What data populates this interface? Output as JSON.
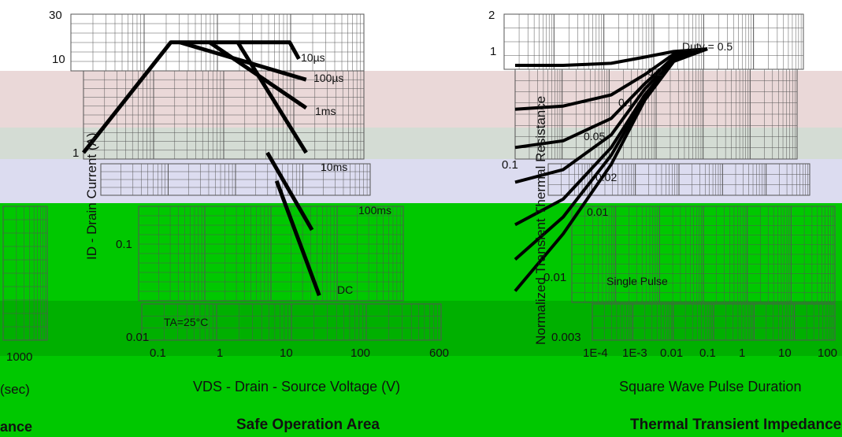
{
  "colors": {
    "pink_band": "#ead8d8",
    "grey_band": "#d4dcd4",
    "lavender_band": "#dcdcf0",
    "green_band": "#00c800",
    "green_dark": "#00b000",
    "curve": "#000000",
    "grid": "#555555"
  },
  "left_fragments": {
    "tick_1000": "1000",
    "label_sec": "(sec)",
    "label_ance": "ance"
  },
  "chart_data": [
    {
      "type": "line",
      "title": "Safe Operation Area",
      "xlabel": "VDS - Drain - Source Voltage (V)",
      "ylabel": "ID - Drain Current (A)",
      "xscale": "log",
      "yscale": "log",
      "xlim": [
        0.1,
        600
      ],
      "ylim": [
        0.01,
        30
      ],
      "x_tick_labels": [
        "0.1",
        "1",
        "10",
        "100",
        "600"
      ],
      "y_tick_labels": [
        "30",
        "10",
        "1",
        "0.1",
        "0.01"
      ],
      "annotations": [
        "TA=25°C"
      ],
      "series": [
        {
          "name": "10µs",
          "points": [
            [
              0.1,
              1
            ],
            [
              1.5,
              15
            ],
            [
              60,
              15
            ],
            [
              80,
              10
            ]
          ]
        },
        {
          "name": "100µs",
          "points": [
            [
              2,
              15
            ],
            [
              100,
              6
            ]
          ]
        },
        {
          "name": "1ms",
          "points": [
            [
              5,
              15
            ],
            [
              100,
              3
            ]
          ]
        },
        {
          "name": "10ms",
          "points": [
            [
              12,
              15
            ],
            [
              100,
              1
            ]
          ]
        },
        {
          "name": "100ms",
          "points": [
            [
              30,
              1
            ],
            [
              120,
              0.15
            ]
          ]
        },
        {
          "name": "DC",
          "points": [
            [
              40,
              0.5
            ],
            [
              150,
              0.03
            ]
          ]
        }
      ]
    },
    {
      "type": "line",
      "title": "Thermal Transient Impedance",
      "xlabel": "Square Wave Pulse Duration",
      "ylabel": "Normalized Transient Thermal Resistance",
      "xscale": "log",
      "yscale": "log",
      "ylim": [
        0.003,
        2
      ],
      "x_tick_labels": [
        "1E-4",
        "1E-3",
        "0.01",
        "0.1",
        "1",
        "10",
        "100"
      ],
      "y_tick_labels": [
        "2",
        "1",
        "0.1",
        "0.01",
        "0.003"
      ],
      "annotations": [
        "Duty = 0.5",
        "Single Pulse"
      ],
      "series": [
        {
          "name": "0.5",
          "points": [
            [
              0.0001,
              0.72
            ],
            [
              0.001,
              0.72
            ],
            [
              0.01,
              0.75
            ],
            [
              0.05,
              0.85
            ],
            [
              0.2,
              0.95
            ],
            [
              1,
              1
            ]
          ]
        },
        {
          "name": "0.2",
          "points": [
            [
              0.0001,
              0.3
            ],
            [
              0.001,
              0.32
            ],
            [
              0.01,
              0.4
            ],
            [
              0.05,
              0.6
            ],
            [
              0.2,
              0.9
            ],
            [
              1,
              1
            ]
          ]
        },
        {
          "name": "0.1",
          "points": [
            [
              0.0001,
              0.14
            ],
            [
              0.001,
              0.16
            ],
            [
              0.01,
              0.25
            ],
            [
              0.05,
              0.5
            ],
            [
              0.2,
              0.85
            ],
            [
              1,
              1
            ]
          ]
        },
        {
          "name": "0.05",
          "points": [
            [
              0.0001,
              0.07
            ],
            [
              0.001,
              0.09
            ],
            [
              0.01,
              0.18
            ],
            [
              0.05,
              0.45
            ],
            [
              0.2,
              0.82
            ],
            [
              1,
              1
            ]
          ]
        },
        {
          "name": "0.02",
          "points": [
            [
              0.0001,
              0.03
            ],
            [
              0.001,
              0.05
            ],
            [
              0.01,
              0.14
            ],
            [
              0.05,
              0.4
            ],
            [
              0.2,
              0.8
            ],
            [
              1,
              1
            ]
          ]
        },
        {
          "name": "0.01",
          "points": [
            [
              0.0001,
              0.015
            ],
            [
              0.001,
              0.035
            ],
            [
              0.01,
              0.12
            ],
            [
              0.05,
              0.38
            ],
            [
              0.2,
              0.8
            ],
            [
              1,
              1
            ]
          ]
        },
        {
          "name": "Single Pulse",
          "points": [
            [
              0.0001,
              0.008
            ],
            [
              0.001,
              0.025
            ],
            [
              0.01,
              0.1
            ],
            [
              0.05,
              0.36
            ],
            [
              0.2,
              0.78
            ],
            [
              1,
              1
            ]
          ]
        }
      ]
    }
  ]
}
